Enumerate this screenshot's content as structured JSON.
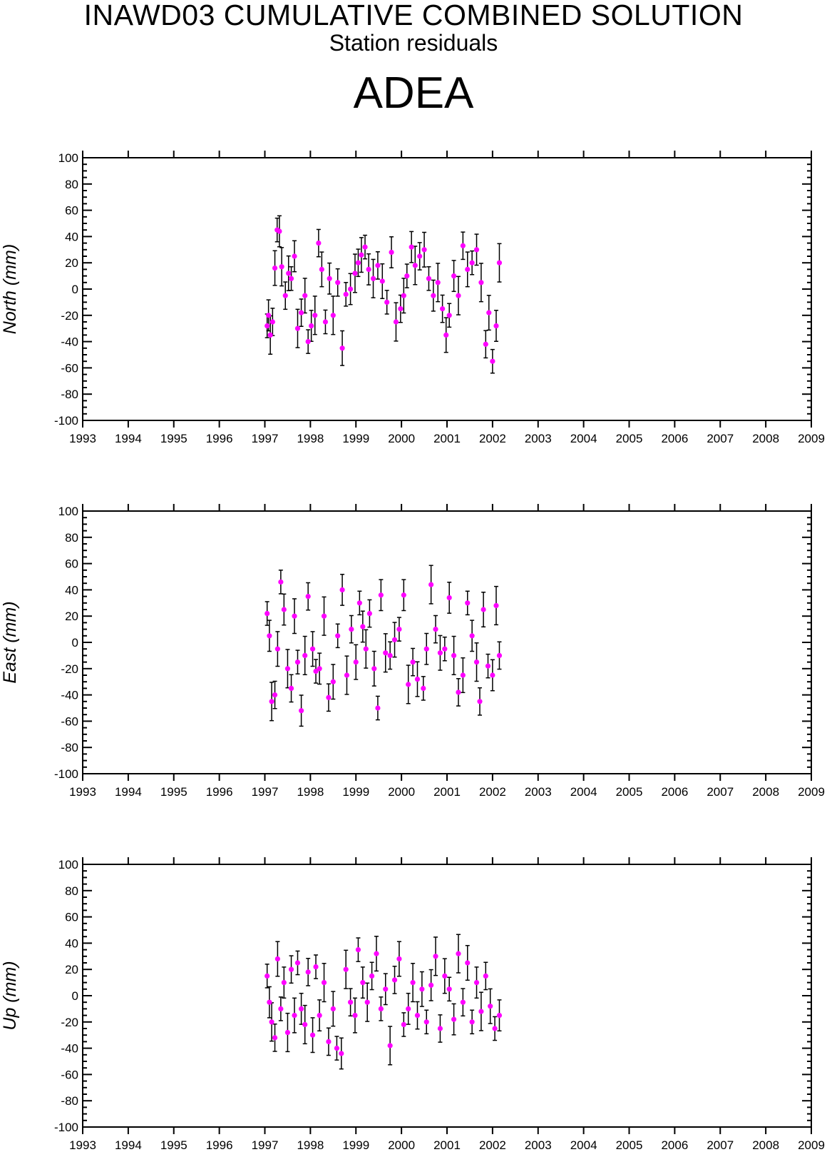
{
  "header": {
    "title": "INAWD03 CUMULATIVE COMBINED SOLUTION",
    "subtitle": "Station residuals",
    "station": "ADEA"
  },
  "colors": {
    "point": "#ff00ff",
    "errorbar": "#000000",
    "frame": "#000000"
  },
  "chart_data": [
    {
      "type": "scatter",
      "ylabel": "North (mm)",
      "xlim": [
        1993,
        2009
      ],
      "ylim": [
        -100,
        100
      ],
      "x_ticks": [
        1993,
        1994,
        1995,
        1996,
        1997,
        1998,
        1999,
        2000,
        2001,
        2002,
        2003,
        2004,
        2005,
        2006,
        2007,
        2008,
        2009
      ],
      "y_ticks": [
        100,
        80,
        60,
        40,
        20,
        0,
        -20,
        -40,
        -60,
        -80,
        -100
      ],
      "grid": false,
      "series": [
        {
          "x": [
            1997.05,
            1997.08,
            1997.12,
            1997.17,
            1997.22,
            1997.27,
            1997.32,
            1997.37,
            1997.45,
            1997.52,
            1997.58,
            1997.65,
            1997.72,
            1997.8,
            1997.88,
            1997.95,
            1998.02,
            1998.1,
            1998.18,
            1998.25,
            1998.33,
            1998.42,
            1998.5,
            1998.6,
            1998.7,
            1998.78,
            1998.88,
            1998.98,
            1999.05,
            1999.12,
            1999.2,
            1999.28,
            1999.38,
            1999.48,
            1999.58,
            1999.68,
            1999.78,
            1999.88,
            1999.98,
            2000.05,
            2000.12,
            2000.22,
            2000.3,
            2000.4,
            2000.5,
            2000.6,
            2000.7,
            2000.8,
            2000.9,
            2000.98,
            2001.05,
            2001.15,
            2001.25,
            2001.35,
            2001.45,
            2001.55,
            2001.65,
            2001.75,
            2001.85,
            2001.92,
            2002.0,
            2002.08,
            2002.15
          ],
          "y": [
            -28,
            -20,
            -35,
            -25,
            16,
            45,
            44,
            17,
            -5,
            12,
            8,
            25,
            -30,
            -18,
            -5,
            -40,
            -28,
            -20,
            35,
            15,
            -25,
            8,
            -20,
            5,
            -45,
            -4,
            0,
            12,
            20,
            26,
            32,
            15,
            8,
            18,
            6,
            -10,
            28,
            -25,
            -15,
            -5,
            10,
            32,
            18,
            25,
            30,
            8,
            -5,
            5,
            -15,
            -35,
            -20,
            10,
            -5,
            33,
            15,
            20,
            30,
            5,
            -42,
            -18,
            -55,
            -28,
            20
          ]
        }
      ]
    },
    {
      "type": "scatter",
      "ylabel": "East (mm)",
      "xlim": [
        1993,
        2009
      ],
      "ylim": [
        -100,
        100
      ],
      "x_ticks": [
        1993,
        1994,
        1995,
        1996,
        1997,
        1998,
        1999,
        2000,
        2001,
        2002,
        2003,
        2004,
        2005,
        2006,
        2007,
        2008,
        2009
      ],
      "y_ticks": [
        100,
        80,
        60,
        40,
        20,
        0,
        -20,
        -40,
        -60,
        -80,
        -100
      ],
      "grid": false,
      "series": [
        {
          "x": [
            1997.05,
            1997.1,
            1997.15,
            1997.22,
            1997.28,
            1997.35,
            1997.42,
            1997.5,
            1997.58,
            1997.65,
            1997.72,
            1997.8,
            1997.88,
            1997.95,
            1998.05,
            1998.12,
            1998.2,
            1998.3,
            1998.4,
            1998.5,
            1998.6,
            1998.7,
            1998.8,
            1998.9,
            1999.0,
            1999.08,
            1999.15,
            1999.22,
            1999.3,
            1999.4,
            1999.48,
            1999.55,
            1999.65,
            1999.75,
            1999.85,
            1999.95,
            2000.05,
            2000.15,
            2000.25,
            2000.35,
            2000.48,
            2000.55,
            2000.65,
            2000.75,
            2000.85,
            2000.95,
            2001.05,
            2001.15,
            2001.25,
            2001.35,
            2001.45,
            2001.55,
            2001.65,
            2001.72,
            2001.8,
            2001.9,
            2002.0,
            2002.08,
            2002.15
          ],
          "y": [
            22,
            5,
            -45,
            -40,
            -5,
            46,
            25,
            -20,
            -35,
            20,
            -15,
            -52,
            -10,
            35,
            -5,
            -22,
            -20,
            20,
            -42,
            -30,
            5,
            40,
            -25,
            10,
            -15,
            30,
            12,
            -5,
            22,
            -20,
            -50,
            36,
            -8,
            -10,
            2,
            10,
            36,
            -32,
            -15,
            -28,
            -35,
            -5,
            44,
            10,
            -8,
            -5,
            34,
            -10,
            -38,
            -25,
            30,
            5,
            -15,
            -45,
            25,
            -18,
            -25,
            28,
            -10
          ]
        }
      ]
    },
    {
      "type": "scatter",
      "ylabel": "Up (mm)",
      "xlim": [
        1993,
        2009
      ],
      "ylim": [
        -100,
        100
      ],
      "x_ticks": [
        1993,
        1994,
        1995,
        1996,
        1997,
        1998,
        1999,
        2000,
        2001,
        2002,
        2003,
        2004,
        2005,
        2006,
        2007,
        2008,
        2009
      ],
      "y_ticks": [
        100,
        80,
        60,
        40,
        20,
        0,
        -20,
        -40,
        -60,
        -80,
        -100
      ],
      "grid": false,
      "series": [
        {
          "x": [
            1997.05,
            1997.1,
            1997.15,
            1997.22,
            1997.28,
            1997.35,
            1997.42,
            1997.5,
            1997.58,
            1997.65,
            1997.72,
            1997.8,
            1997.88,
            1997.95,
            1998.05,
            1998.12,
            1998.2,
            1998.3,
            1998.4,
            1998.5,
            1998.58,
            1998.68,
            1998.78,
            1998.88,
            1998.98,
            1999.05,
            1999.15,
            1999.25,
            1999.35,
            1999.45,
            1999.55,
            1999.65,
            1999.75,
            1999.85,
            1999.95,
            2000.05,
            2000.15,
            2000.25,
            2000.35,
            2000.45,
            2000.55,
            2000.65,
            2000.75,
            2000.85,
            2000.95,
            2001.05,
            2001.15,
            2001.25,
            2001.35,
            2001.45,
            2001.55,
            2001.65,
            2001.75,
            2001.85,
            2001.95,
            2002.05,
            2002.15
          ],
          "y": [
            15,
            -5,
            -20,
            -32,
            28,
            -10,
            10,
            -28,
            20,
            -15,
            25,
            -10,
            -22,
            18,
            -30,
            22,
            -15,
            10,
            -35,
            -10,
            -40,
            -44,
            20,
            -5,
            -15,
            35,
            10,
            -5,
            15,
            32,
            -10,
            5,
            -38,
            12,
            28,
            -22,
            -10,
            10,
            -15,
            5,
            -20,
            8,
            30,
            -25,
            15,
            5,
            -18,
            32,
            -5,
            25,
            -20,
            10,
            -12,
            15,
            -8,
            -25,
            -15
          ]
        }
      ]
    }
  ]
}
